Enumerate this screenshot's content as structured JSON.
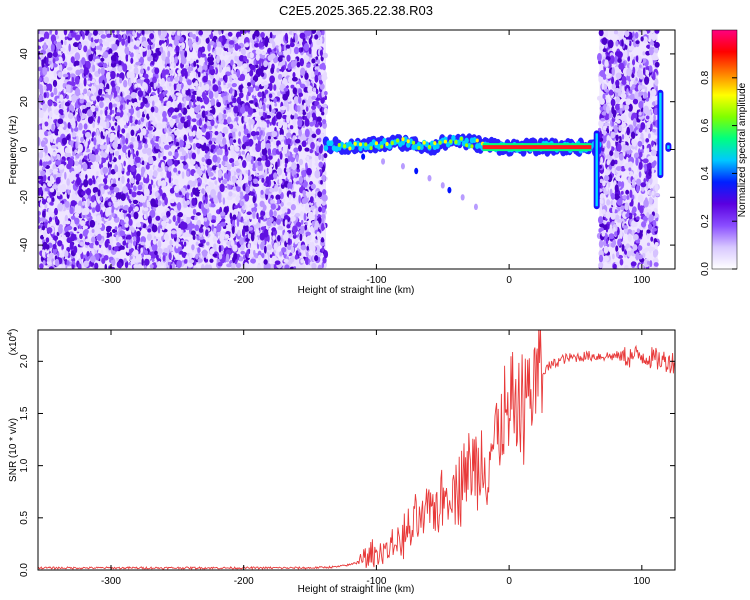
{
  "title": "C2E5.2025.365.22.38.R03",
  "chart_data": [
    {
      "type": "heatmap",
      "xlabel": "Height of straight line (km)",
      "ylabel": "Frequency (Hz)",
      "xlim": [
        -355,
        125
      ],
      "ylim": [
        -50,
        50
      ],
      "x_ticks": [
        -300,
        -200,
        -100,
        0,
        100
      ],
      "x_tick_labels": [
        "-300",
        "-200",
        "-100",
        "0",
        "100"
      ],
      "y_ticks": [
        -40,
        -20,
        0,
        20,
        40
      ],
      "y_tick_labels": [
        "-40",
        "-20",
        "0",
        "20",
        "40"
      ],
      "noise_regions_km": [
        [
          -355,
          -138
        ],
        [
          68,
          112
        ]
      ],
      "signal_track": {
        "x": [
          -138,
          -120,
          -100,
          -80,
          -60,
          -40,
          -20,
          0,
          20,
          40,
          60,
          68
        ],
        "y": [
          2,
          1,
          2,
          3,
          1,
          4,
          2,
          1,
          1,
          1,
          1,
          1
        ],
        "peak_segment_km": [
          -20,
          62
        ]
      },
      "secondary_track": {
        "x": [
          -110,
          -95,
          -80,
          -70,
          -60,
          -50,
          -45,
          -35,
          -25
        ],
        "y": [
          -3,
          -5,
          -7,
          -9,
          -12,
          -15,
          -17,
          -20,
          -24
        ]
      },
      "edge_features": [
        {
          "x": 66,
          "y_range": [
            -25,
            8
          ]
        },
        {
          "x": 114,
          "y_range": [
            -12,
            25
          ]
        },
        {
          "x": 120,
          "y_range": [
            -1,
            3
          ]
        }
      ],
      "colorbar": {
        "label": "Normalized spectral amplitude",
        "range": [
          0,
          1
        ],
        "ticks": [
          0.0,
          0.2,
          0.4,
          0.6,
          0.8
        ],
        "tick_labels": [
          "0.0",
          "0.2",
          "0.4",
          "0.6",
          "0.8"
        ],
        "colors": [
          "#ffffff",
          "#d8c8ff",
          "#8a4dff",
          "#5a00e0",
          "#0020ff",
          "#00c8ff",
          "#00ff80",
          "#80ff00",
          "#ffff00",
          "#ff8000",
          "#ff0000",
          "#ff0080"
        ]
      }
    },
    {
      "type": "line",
      "xlabel": "Height of straight line (km)",
      "ylabel": "SNR (10 * v/v)",
      "scale_label": "(x10",
      "scale_exponent": "4",
      "scale_suffix": ")",
      "xlim": [
        -355,
        125
      ],
      "ylim": [
        0,
        2.3
      ],
      "x_ticks": [
        -300,
        -200,
        -100,
        0,
        100
      ],
      "x_tick_labels": [
        "-300",
        "-200",
        "-100",
        "0",
        "100"
      ],
      "y_ticks": [
        0.0,
        0.5,
        1.0,
        1.5,
        2.0
      ],
      "y_tick_labels": [
        "0.0",
        "0.5",
        "1.0",
        "1.5",
        "2.0"
      ],
      "color": "#e83a3a",
      "series": [
        {
          "x": [
            -355,
            -300,
            -200,
            -150,
            -130,
            -120,
            -110,
            -100,
            -90,
            -80,
            -70,
            -60,
            -50,
            -40,
            -30,
            -20,
            -10,
            0,
            10,
            20,
            30,
            40,
            50,
            60,
            70,
            80,
            90,
            100,
            110,
            120,
            125
          ],
          "y": [
            0.02,
            0.02,
            0.02,
            0.02,
            0.03,
            0.05,
            0.1,
            0.15,
            0.22,
            0.3,
            0.42,
            0.55,
            0.7,
            0.85,
            0.95,
            1.05,
            1.25,
            1.45,
            1.65,
            1.82,
            1.95,
            2.02,
            2.04,
            2.05,
            2.05,
            2.05,
            2.04,
            2.06,
            2.02,
            2.0,
            1.99
          ]
        }
      ]
    }
  ]
}
